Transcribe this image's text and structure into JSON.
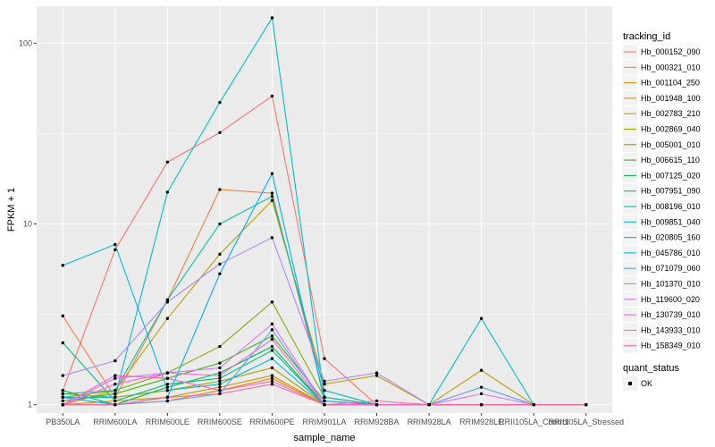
{
  "chart_data": {
    "type": "line",
    "title": "",
    "xlabel": "sample_name",
    "ylabel": "FPKM + 1",
    "y_scale": "log10",
    "ylim": [
      0.9,
      160
    ],
    "y_ticks": [
      1,
      10,
      100
    ],
    "y_tick_labels": [
      "1",
      "10",
      "100"
    ],
    "grid": true,
    "legend_placement": "right",
    "categories": [
      "PB350LA",
      "RRIM600LA",
      "RRIM600LE",
      "RRIM600SE",
      "RRIM600PE",
      "RRIM901LA",
      "RRIM928BA",
      "RRIM928LA",
      "RRIM928LE",
      "RRII105LA_Control",
      "RRII105LA_Stressed"
    ],
    "legend_title": "tracking_id",
    "series": [
      {
        "name": "Hb_000152_090",
        "color": "#F8766D",
        "values": [
          1.2,
          7.2,
          22,
          32,
          51,
          1.8,
          1.0,
          1.0,
          1.0,
          1.0,
          1.0
        ]
      },
      {
        "name": "Hb_000321_010",
        "color": "#EE8043",
        "values": [
          3.1,
          1.1,
          3.8,
          15.5,
          14.8,
          1.1,
          1.0,
          1.0,
          1.0,
          1.0,
          1.0
        ]
      },
      {
        "name": "Hb_001104_250",
        "color": "#E18A00",
        "values": [
          1.0,
          1.0,
          1.05,
          1.2,
          1.4,
          1.0,
          1.0,
          1.0,
          1.0,
          1.0,
          1.0
        ]
      },
      {
        "name": "Hb_001948_100",
        "color": "#CF9400",
        "values": [
          1.0,
          1.05,
          1.1,
          1.25,
          1.45,
          1.0,
          1.0,
          1.0,
          1.0,
          1.0,
          1.0
        ]
      },
      {
        "name": "Hb_002783_210",
        "color": "#BA9E00",
        "values": [
          1.0,
          1.2,
          3.0,
          6.8,
          13.5,
          1.3,
          1.45,
          1.0,
          1.55,
          1.0,
          1.0
        ]
      },
      {
        "name": "Hb_002869_040",
        "color": "#A3A500",
        "values": [
          1.15,
          1.1,
          1.2,
          1.35,
          1.6,
          1.0,
          1.0,
          1.0,
          1.0,
          1.0,
          1.0
        ]
      },
      {
        "name": "Hb_005001_010",
        "color": "#7CAE00",
        "values": [
          1.1,
          1.2,
          1.5,
          2.1,
          3.7,
          1.1,
          1.0,
          1.0,
          1.0,
          1.0,
          1.0
        ]
      },
      {
        "name": "Hb_006615_110",
        "color": "#39B600",
        "values": [
          1.05,
          1.15,
          1.4,
          1.7,
          2.4,
          1.05,
          1.0,
          1.0,
          1.0,
          1.0,
          1.0
        ]
      },
      {
        "name": "Hb_007125_020",
        "color": "#00BB4E",
        "values": [
          1.2,
          1.0,
          1.25,
          1.5,
          2.1,
          1.0,
          1.0,
          1.0,
          1.0,
          1.0,
          1.0
        ]
      },
      {
        "name": "Hb_007951_090",
        "color": "#00BF7D",
        "values": [
          2.2,
          1.05,
          1.3,
          1.4,
          2.0,
          1.0,
          1.0,
          1.0,
          1.0,
          1.0,
          1.0
        ]
      },
      {
        "name": "Hb_008196_010",
        "color": "#00C1A3",
        "values": [
          1.15,
          1.2,
          3.8,
          10,
          14.2,
          1.2,
          1.0,
          1.0,
          1.0,
          1.0,
          1.0
        ]
      },
      {
        "name": "Hb_009851_040",
        "color": "#00BFC4",
        "values": [
          1.1,
          1.1,
          15,
          47,
          138,
          1.1,
          1.0,
          1.0,
          3.0,
          1.0,
          1.0
        ]
      },
      {
        "name": "Hb_020805_160",
        "color": "#00B8E5",
        "values": [
          5.9,
          7.7,
          1.2,
          1.3,
          1.8,
          1.0,
          1.0,
          1.0,
          1.0,
          1.0,
          1.0
        ]
      },
      {
        "name": "Hb_045786_010",
        "color": "#00ADFA",
        "values": [
          1.1,
          1.0,
          1.1,
          5.3,
          19,
          1.05,
          1.0,
          1.0,
          1.0,
          1.0,
          1.0
        ]
      },
      {
        "name": "Hb_071079_060",
        "color": "#619CFF",
        "values": [
          1.0,
          1.0,
          1.05,
          1.15,
          2.6,
          1.0,
          1.0,
          1.0,
          1.25,
          1.0,
          1.0
        ]
      },
      {
        "name": "Hb_101370_010",
        "color": "#AE87FF",
        "values": [
          1.45,
          1.75,
          3.7,
          6.0,
          8.4,
          1.35,
          1.5,
          1.0,
          1.0,
          1.0,
          1.0
        ]
      },
      {
        "name": "Hb_119600_020",
        "color": "#DB72FB",
        "values": [
          1.0,
          1.4,
          1.5,
          1.6,
          2.8,
          1.0,
          1.0,
          1.0,
          1.15,
          1.0,
          1.0
        ]
      },
      {
        "name": "Hb_130739_010",
        "color": "#F564E3",
        "values": [
          1.0,
          1.3,
          1.5,
          1.45,
          2.3,
          1.0,
          1.0,
          1.0,
          1.0,
          1.0,
          1.0
        ]
      },
      {
        "name": "Hb_143933_010",
        "color": "#FF61C3",
        "values": [
          1.0,
          1.45,
          1.4,
          1.2,
          1.35,
          1.0,
          1.0,
          1.0,
          1.0,
          1.0,
          1.0
        ]
      },
      {
        "name": "Hb_158349_010",
        "color": "#FF699C",
        "values": [
          1.0,
          1.0,
          1.1,
          1.15,
          1.3,
          1.0,
          1.05,
          1.0,
          1.0,
          1.0,
          1.0
        ]
      }
    ],
    "shape_legend": {
      "title": "quant_status",
      "items": [
        {
          "label": "OK"
        }
      ]
    },
    "colors": {
      "panel_background": "#EBEBEB",
      "grid_major": "#FFFFFF",
      "point": "#000000"
    }
  }
}
